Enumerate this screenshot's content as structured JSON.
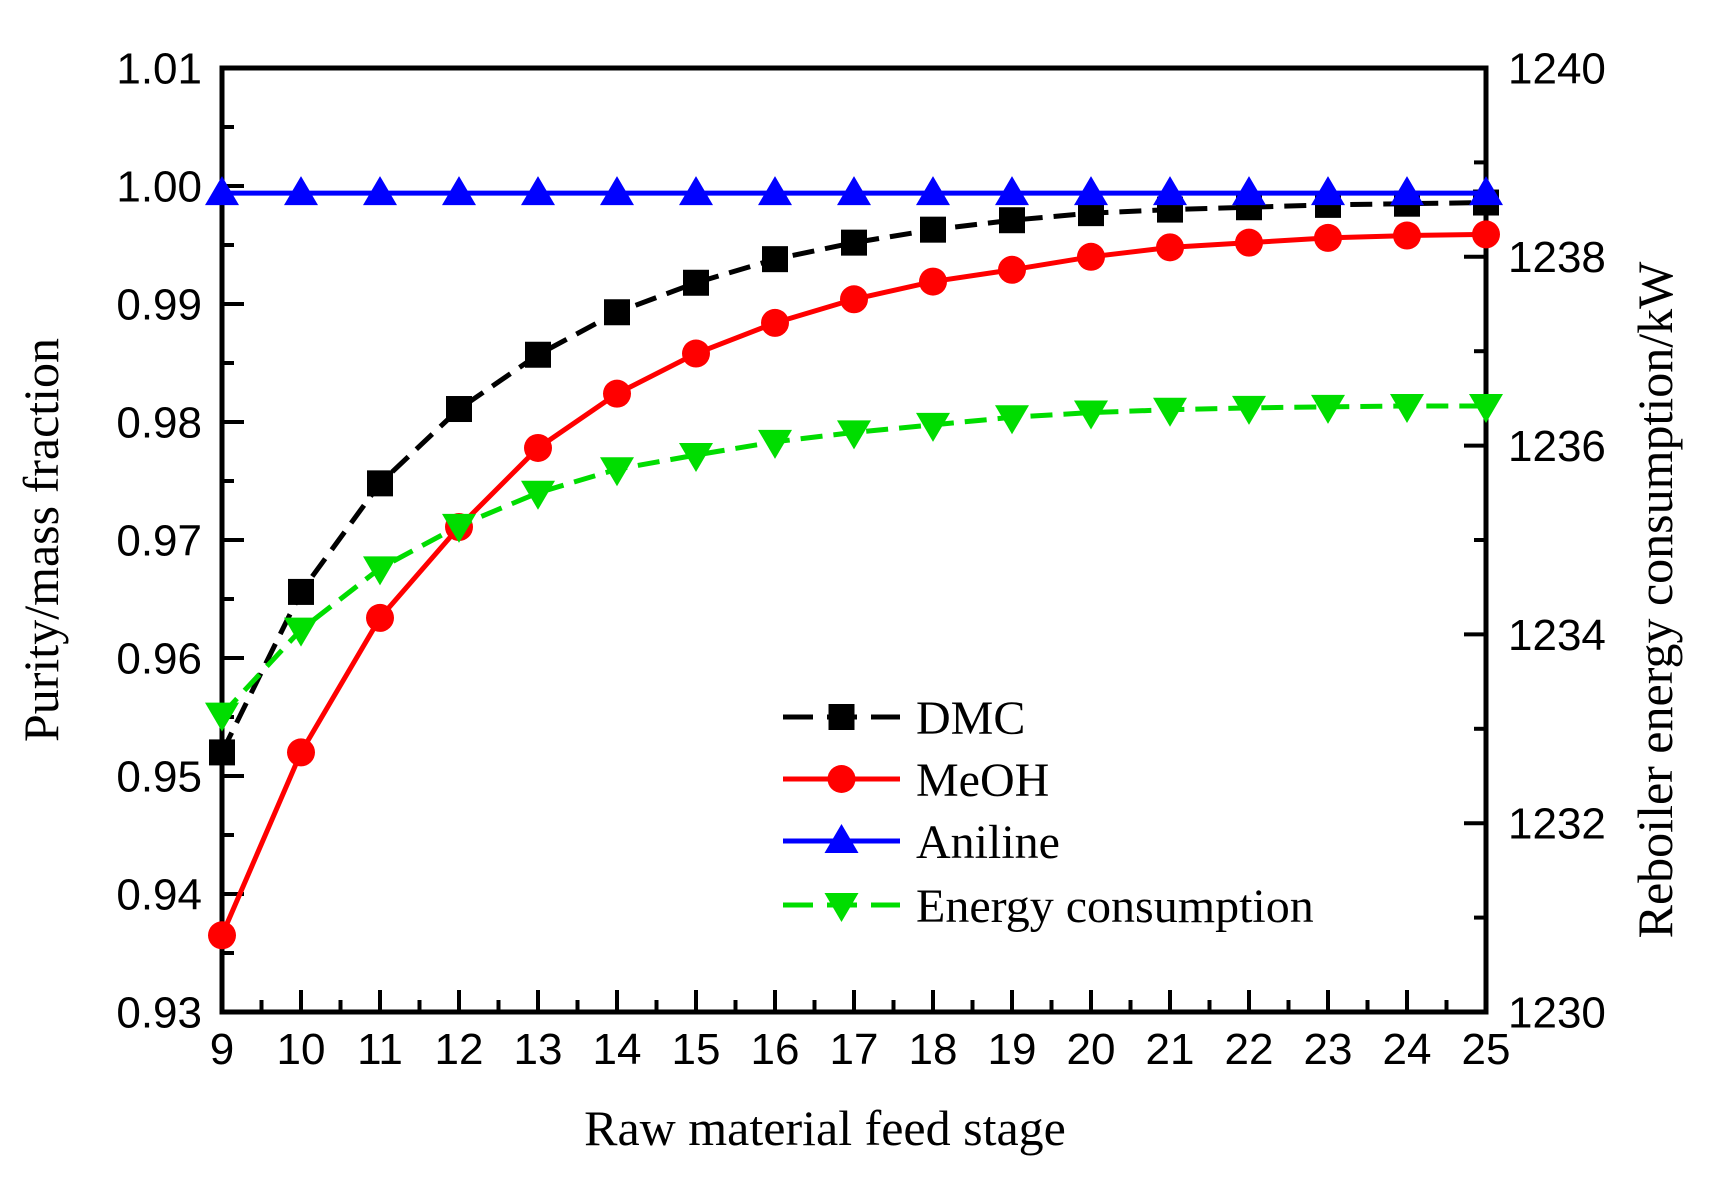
{
  "chart_data": {
    "type": "line",
    "title": "",
    "xlabel": "Raw material feed stage",
    "ylabel_left": "Purity/mass fraction",
    "ylabel_right": "Reboiler energy consumption/kW",
    "x": [
      9,
      10,
      11,
      12,
      13,
      14,
      15,
      16,
      17,
      18,
      19,
      20,
      21,
      22,
      23,
      24,
      25
    ],
    "xlim": [
      9,
      25
    ],
    "x_major_step": 1,
    "x_minor_step": 0.5,
    "ylim_left": [
      0.93,
      1.01
    ],
    "y_left_major_step": 0.01,
    "y_left_minor_step": 0.005,
    "y_left_tick_labels": [
      "0.93",
      "0.94",
      "0.95",
      "0.96",
      "0.97",
      "0.98",
      "0.99",
      "1.00",
      "1.01"
    ],
    "ylim_right": [
      1230,
      1240
    ],
    "y_right_label_step": 2,
    "y_right_minor_step": 1,
    "y_right_tick_labels": [
      "1230",
      "1232",
      "1234",
      "1236",
      "1238",
      "1240"
    ],
    "grid": false,
    "legend_position": "inside-center-right",
    "series": [
      {
        "name": "DMC",
        "axis": "left",
        "color": "#000000",
        "marker": "square",
        "line": "dashed",
        "values": [
          0.952,
          0.9656,
          0.9748,
          0.9811,
          0.9857,
          0.9893,
          0.9918,
          0.9938,
          0.9952,
          0.9963,
          0.9971,
          0.9977,
          0.998,
          0.9982,
          0.9984,
          0.9985,
          0.9986
        ]
      },
      {
        "name": "MeOH",
        "axis": "left",
        "color": "#ff0000",
        "marker": "circle",
        "line": "solid",
        "values": [
          0.9365,
          0.952,
          0.9634,
          0.9711,
          0.9778,
          0.9824,
          0.9858,
          0.9884,
          0.9904,
          0.9919,
          0.9929,
          0.994,
          0.9948,
          0.9952,
          0.9956,
          0.9958,
          0.9959
        ]
      },
      {
        "name": "Aniline",
        "axis": "left",
        "color": "#0000ff",
        "marker": "triangle-up",
        "line": "solid",
        "values": [
          0.9994,
          0.9994,
          0.9994,
          0.9994,
          0.9994,
          0.9994,
          0.9994,
          0.9994,
          0.9994,
          0.9994,
          0.9994,
          0.9994,
          0.9994,
          0.9994,
          0.9994,
          0.9994,
          0.9994
        ]
      },
      {
        "name": "Energy consumption",
        "axis": "right",
        "color": "#00dd00",
        "marker": "triangle-down",
        "line": "dashed",
        "values": [
          1233.15,
          1234.05,
          1234.7,
          1235.15,
          1235.5,
          1235.75,
          1235.9,
          1236.04,
          1236.14,
          1236.22,
          1236.3,
          1236.35,
          1236.38,
          1236.4,
          1236.41,
          1236.42,
          1236.42
        ]
      }
    ]
  }
}
